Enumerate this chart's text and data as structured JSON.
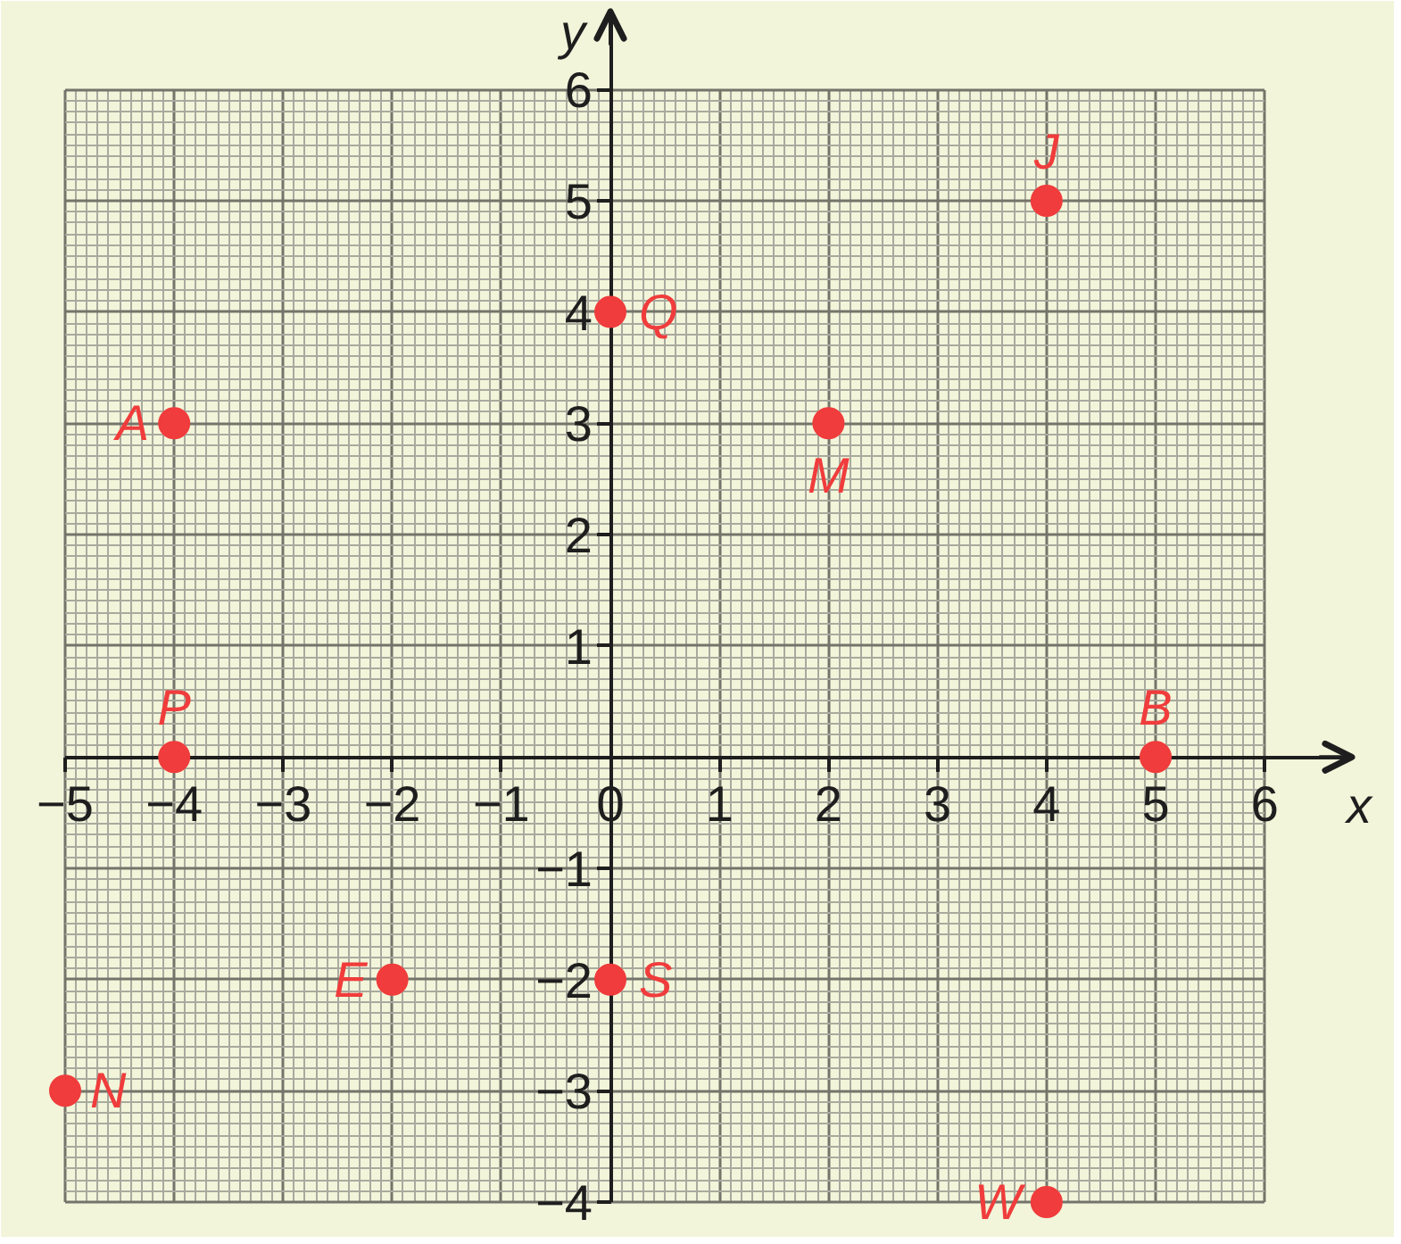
{
  "chart_data": {
    "type": "scatter",
    "xlabel": "x",
    "ylabel": "y",
    "xlim": [
      -5,
      6.8
    ],
    "ylim": [
      -4,
      6.7
    ],
    "xticks": [
      {
        "value": -5,
        "label": "−5"
      },
      {
        "value": -4,
        "label": "−4"
      },
      {
        "value": -3,
        "label": "−3"
      },
      {
        "value": -2,
        "label": "−2"
      },
      {
        "value": -1,
        "label": "−1"
      },
      0,
      1,
      2,
      3,
      4,
      5,
      6
    ],
    "yticks": [
      {
        "value": -4,
        "label": "−4"
      },
      {
        "value": -3,
        "label": "−3"
      },
      {
        "value": -2,
        "label": "−2"
      },
      {
        "value": -1,
        "label": "−1"
      },
      1,
      2,
      3,
      4,
      5,
      6
    ],
    "grid": true,
    "marker": "circle",
    "series": [
      {
        "color": "#f03c3c",
        "x": [
          -4,
          0,
          4,
          2,
          -4,
          5,
          -2,
          0,
          -5,
          4
        ],
        "values": [
          3,
          4,
          5,
          3,
          0,
          0,
          -2,
          -2,
          -3,
          -4
        ]
      }
    ],
    "annotations": [
      {
        "text": "A",
        "x": -4,
        "y": 3
      },
      {
        "text": "Q",
        "x": 0,
        "y": 4
      },
      {
        "text": "J",
        "x": 4,
        "y": 5
      },
      {
        "text": "M",
        "x": 2,
        "y": 3
      },
      {
        "text": "P",
        "x": -4,
        "y": 0
      },
      {
        "text": "B",
        "x": 5,
        "y": 0
      },
      {
        "text": "E",
        "x": -2,
        "y": -2
      },
      {
        "text": "S",
        "x": 0,
        "y": -2
      },
      {
        "text": "N",
        "x": -5,
        "y": -3
      },
      {
        "text": "W",
        "x": 4,
        "y": -4
      }
    ]
  }
}
